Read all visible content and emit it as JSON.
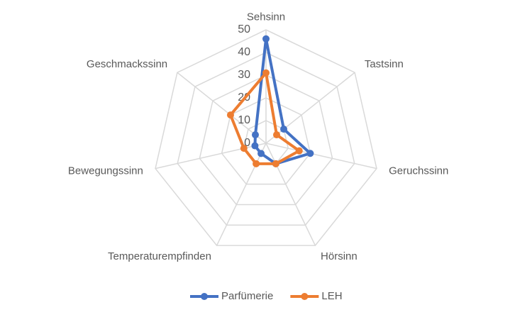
{
  "chart_data": {
    "type": "radar",
    "categories": [
      "Sehsinn",
      "Tastsinn",
      "Geruchssinn",
      "Hörsinn",
      "Temperaturempfinden",
      "Bewegungssinn",
      "Geschmackssinn"
    ],
    "series": [
      {
        "name": "Parfümerie",
        "color": "#4472c4",
        "values": [
          46,
          10,
          20,
          10,
          5,
          5,
          6
        ]
      },
      {
        "name": "LEH",
        "color": "#ed7d31",
        "values": [
          31,
          6,
          15,
          10,
          10,
          10,
          20
        ]
      }
    ],
    "ylim": [
      0,
      50
    ],
    "yticks": [
      0,
      10,
      20,
      30,
      40,
      50
    ],
    "grid": true,
    "legend": "bottom"
  }
}
